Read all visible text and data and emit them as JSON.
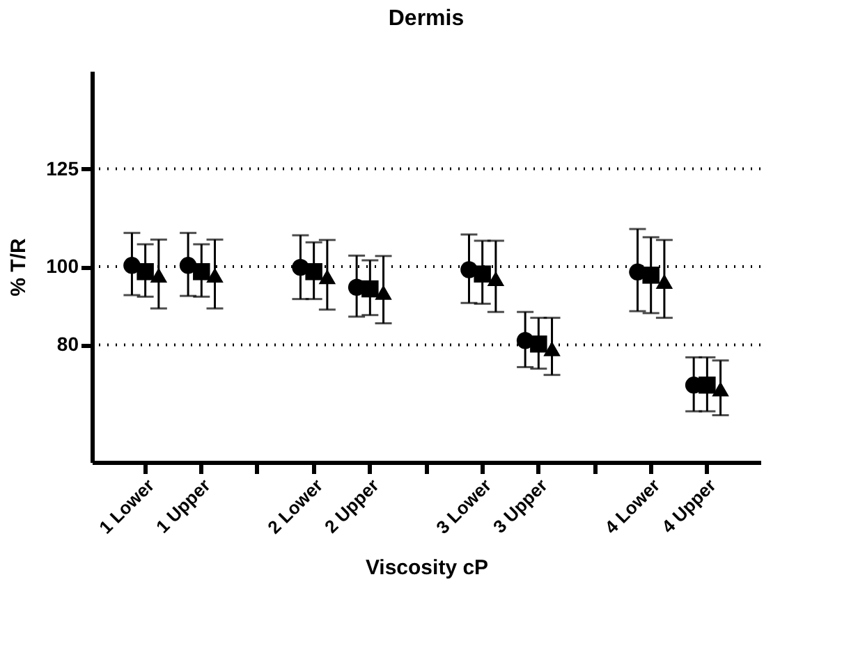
{
  "chart_data": {
    "type": "scatter",
    "title": "Dermis",
    "xlabel": "Viscosity cP",
    "ylabel": "% T/R",
    "categories": [
      "1 Lower",
      "1 Upper",
      null,
      "2 Lower",
      "2 Upper",
      null,
      "3 Lower",
      "3 Upper",
      null,
      "4 Lower",
      "4 Upper"
    ],
    "series": [
      {
        "color": "#000000",
        "marker": "circle",
        "values": [
          100.3,
          100.3,
          null,
          99.8,
          94.7,
          null,
          99.2,
          81.1,
          null,
          98.6,
          69.7
        ],
        "errors": [
          [
            92.7,
            108.6
          ],
          [
            92.5,
            108.6
          ],
          null,
          [
            91.7,
            108
          ],
          [
            87.2,
            102.8
          ],
          null,
          [
            90.7,
            108.2
          ],
          [
            74.3,
            88.4
          ],
          null,
          [
            88.6,
            109.6
          ],
          [
            63,
            76.8
          ]
        ]
      },
      {
        "color": "#000000",
        "marker": "square",
        "values": [
          98.7,
          98.7,
          null,
          98.7,
          94.3,
          null,
          98.1,
          80.2,
          null,
          97.8,
          69.7
        ],
        "errors": [
          [
            92.3,
            105.7
          ],
          [
            92.3,
            105.7
          ],
          null,
          [
            91.7,
            106.2
          ],
          [
            87.6,
            101.6
          ],
          null,
          [
            90.5,
            106.6
          ],
          [
            73.9,
            86.9
          ],
          null,
          [
            88.1,
            107.5
          ],
          [
            63,
            76.8
          ]
        ]
      },
      {
        "color": "#000000",
        "marker": "triangle",
        "values": [
          97.8,
          97.8,
          null,
          97.4,
          93.4,
          null,
          96.9,
          79,
          null,
          96.2,
          68.7
        ],
        "errors": [
          [
            89.3,
            106.9
          ],
          [
            89.3,
            106.9
          ],
          null,
          [
            89,
            106.8
          ],
          [
            85.5,
            102.7
          ],
          null,
          [
            88.4,
            106.6
          ],
          [
            72.3,
            86.9
          ],
          null,
          [
            86.9,
            106.8
          ],
          [
            62,
            76
          ]
        ]
      }
    ],
    "ylim": [
      50,
      150
    ],
    "yticks": [
      80,
      100,
      125
    ],
    "grid": false,
    "ref_lines": [
      {
        "axis": "y",
        "value": 125,
        "line_style": "dotted"
      },
      {
        "axis": "y",
        "value": 100,
        "line_style": "dotted"
      },
      {
        "axis": "y",
        "value": 80,
        "line_style": "dotted"
      }
    ]
  }
}
